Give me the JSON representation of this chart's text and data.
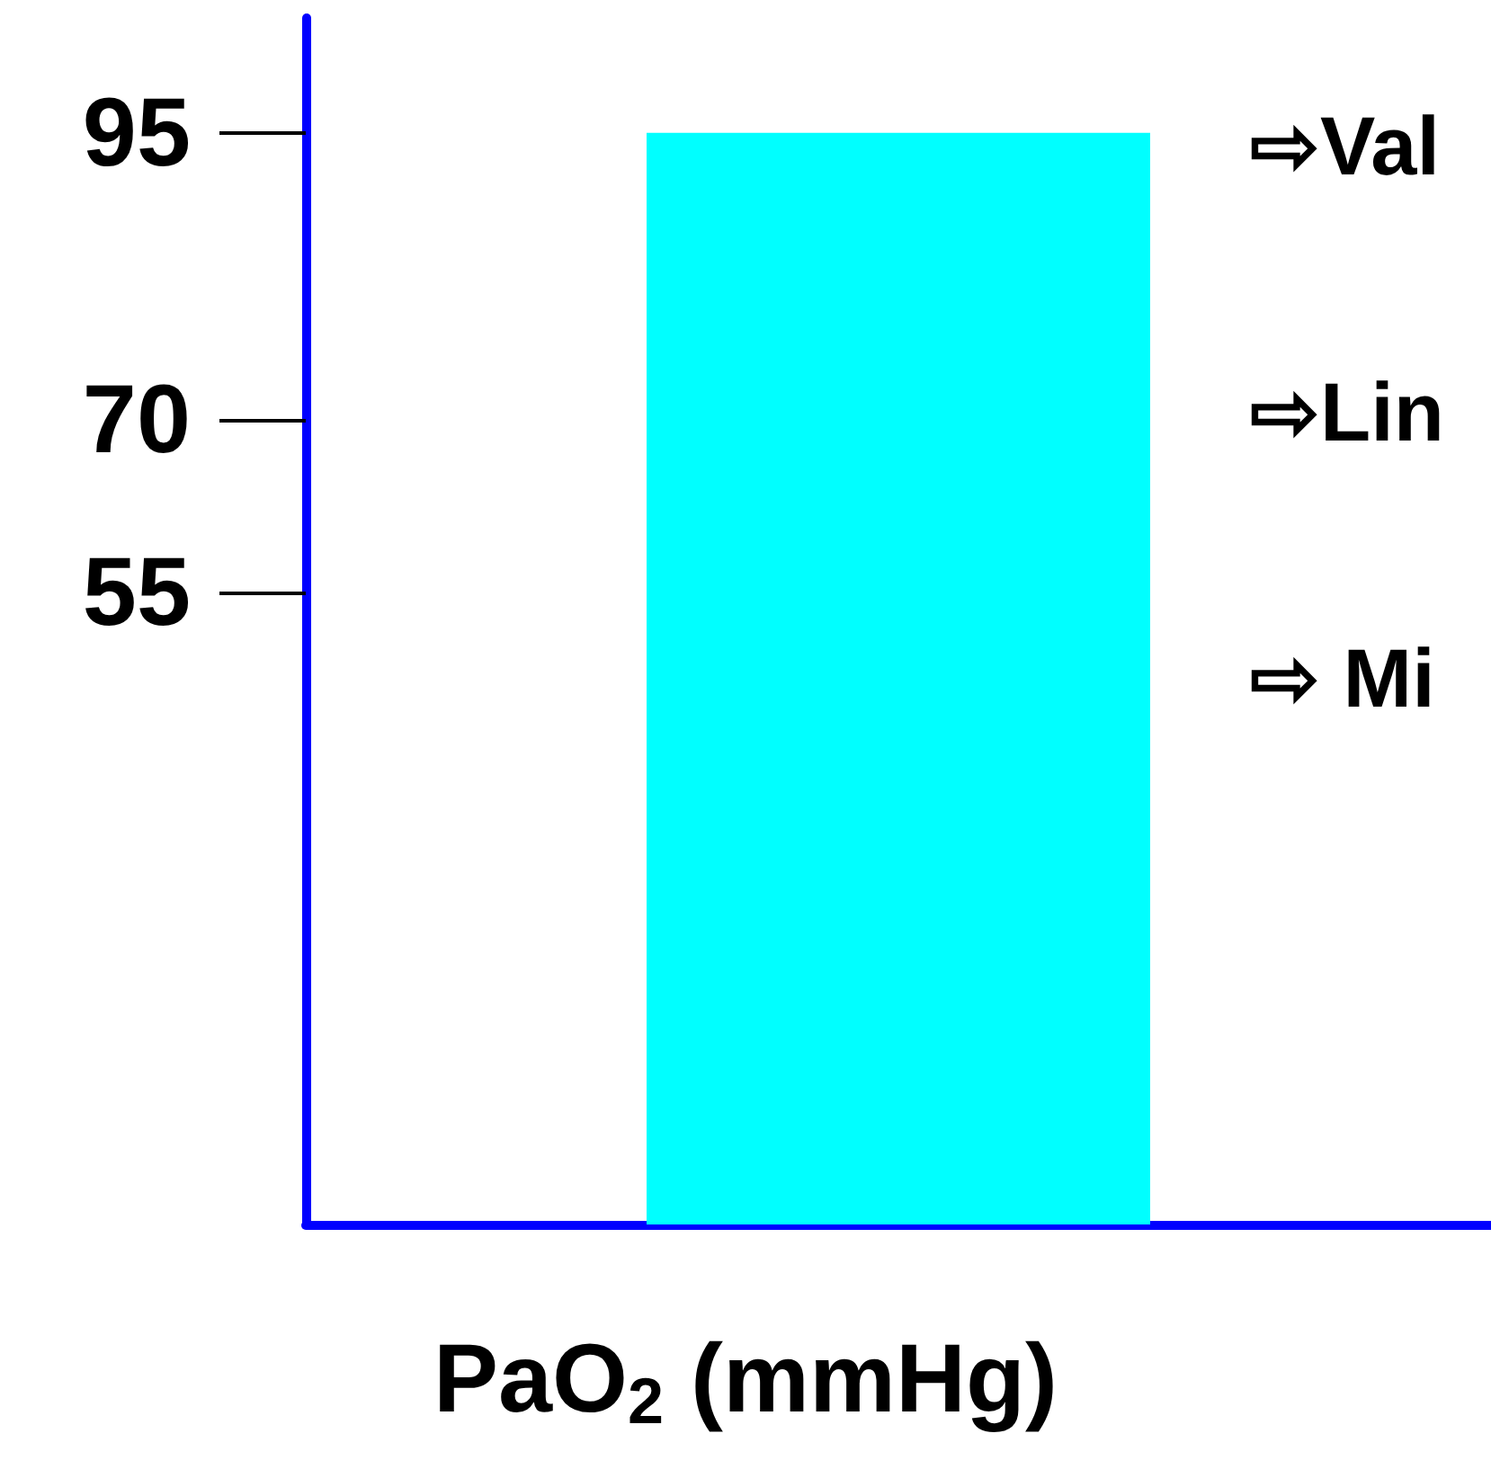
{
  "chart_data": {
    "type": "bar",
    "categories": [
      null
    ],
    "values": [
      95
    ],
    "color": "#00ffff",
    "xlabel": "PaO$_{2}$ (mmHg)",
    "ylim": [
      0,
      105
    ],
    "yticks": [
      55,
      70,
      95
    ],
    "annotations": [
      "⇨Val",
      "⇨Lin",
      "⇨ Mi"
    ]
  }
}
